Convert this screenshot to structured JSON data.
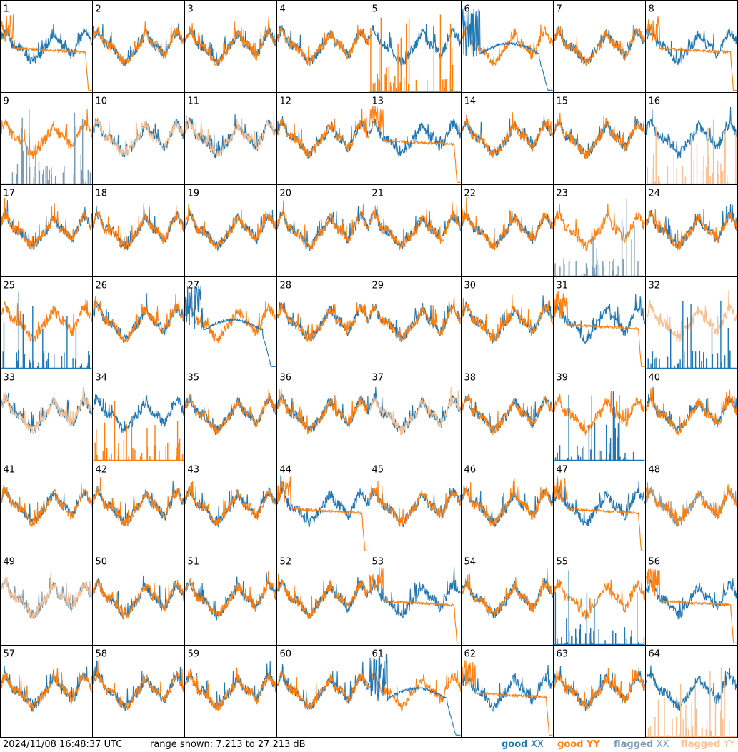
{
  "chart_data": {
    "type": "line",
    "layout": "8x8 small multiples",
    "panels": [
      "1",
      "2",
      "3",
      "4",
      "5",
      "6",
      "7",
      "8",
      "9",
      "10",
      "11",
      "12",
      "13",
      "14",
      "15",
      "16",
      "17",
      "18",
      "19",
      "20",
      "21",
      "22",
      "23",
      "24",
      "25",
      "26",
      "27",
      "28",
      "29",
      "30",
      "31",
      "32",
      "33",
      "34",
      "35",
      "36",
      "37",
      "38",
      "39",
      "40",
      "41",
      "42",
      "43",
      "44",
      "45",
      "46",
      "47",
      "48",
      "49",
      "50",
      "51",
      "52",
      "53",
      "54",
      "55",
      "56",
      "57",
      "58",
      "59",
      "60",
      "61",
      "62",
      "63",
      "64"
    ],
    "ylim": [
      7.213,
      27.213
    ],
    "yunit": "dB",
    "series_styles": {
      "good_xx": "#1f77b4",
      "good_yy": "#ff7f0e",
      "flagged_xx": "#7a9bb8",
      "flagged_yy": "#f9bf8f"
    },
    "panel_modes": {
      "1": [
        "good_xx",
        "good_yy_decay"
      ],
      "5": [
        "good_xx",
        "good_yy_spikes"
      ],
      "6": [
        "good_yy",
        "good_xx_hump"
      ],
      "8": [
        "good_xx",
        "good_yy_decay"
      ],
      "9": [
        "good_yy",
        "flagged_xx_spikes"
      ],
      "10": [
        "good_xx",
        "flagged_yy"
      ],
      "11": [
        "good_xx",
        "flagged_yy"
      ],
      "13": [
        "good_xx",
        "good_yy_decay"
      ],
      "16": [
        "good_xx",
        "flagged_yy_spikes"
      ],
      "23": [
        "good_yy",
        "flagged_xx_spikes"
      ],
      "25": [
        "good_yy",
        "good_xx_spikes"
      ],
      "27": [
        "good_yy",
        "good_xx_hump"
      ],
      "31": [
        "good_xx",
        "good_yy_decay"
      ],
      "32": [
        "flagged_yy",
        "good_xx_spikes"
      ],
      "33": [
        "good_xx",
        "flagged_yy"
      ],
      "34": [
        "good_xx",
        "good_yy_spikes"
      ],
      "37": [
        "good_xx",
        "flagged_yy"
      ],
      "39": [
        "good_yy",
        "good_xx_spikes"
      ],
      "44": [
        "good_xx",
        "good_yy_decay"
      ],
      "47": [
        "good_xx",
        "good_yy_decay"
      ],
      "48": [
        "flagged_xx",
        "good_yy"
      ],
      "49": [
        "flagged_xx",
        "flagged_yy"
      ],
      "53": [
        "good_xx",
        "good_yy_decay"
      ],
      "55": [
        "good_yy",
        "good_xx_spikes"
      ],
      "56": [
        "good_xx",
        "good_yy_decay"
      ],
      "61": [
        "good_yy",
        "good_xx_hump"
      ],
      "62": [
        "good_xx",
        "good_yy_decay"
      ],
      "64": [
        "good_xx",
        "flagged_yy_spikes"
      ]
    },
    "default_mode": [
      "good_xx",
      "good_yy"
    ],
    "footer": {
      "timestamp": "2024/11/08 16:48:37 UTC",
      "range_text": "range shown: 7.213 to 27.213 dB"
    },
    "legend": [
      {
        "word": "good",
        "pol": "XX",
        "color": "#1f77b4"
      },
      {
        "word": "good",
        "pol": "YY",
        "color": "#ff7f0e"
      },
      {
        "word": "flagged",
        "pol": "XX",
        "color": "#7a9bb8"
      },
      {
        "word": "flagged",
        "pol": "YY",
        "color": "#f9bf8f"
      }
    ]
  }
}
